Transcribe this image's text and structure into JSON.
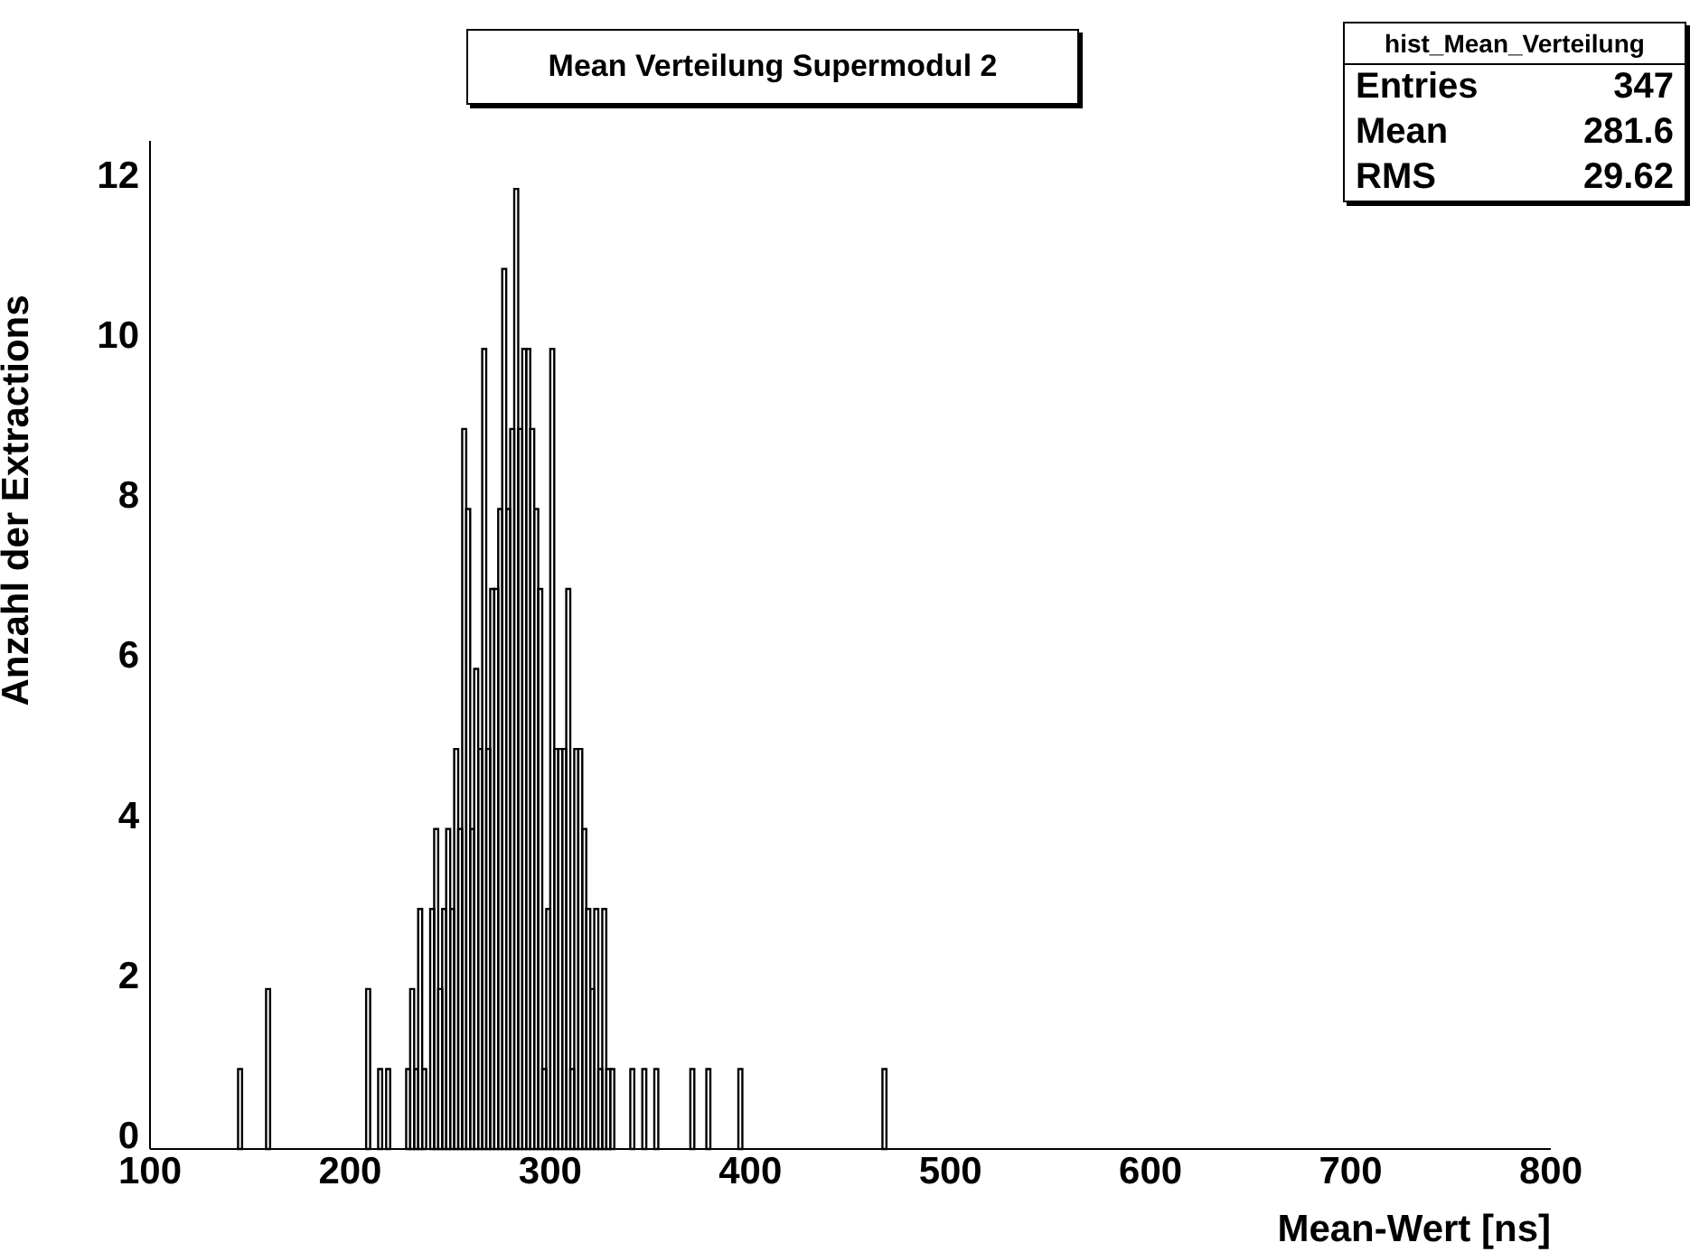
{
  "chart_data": {
    "type": "histogram",
    "title": "Mean Verteilung Supermodul 2",
    "xlabel": "Mean-Wert [ns]",
    "ylabel": "Anzahl der Extractions",
    "bins": [
      144,
      146,
      158,
      160,
      208,
      210,
      214,
      216,
      218,
      220,
      228,
      230,
      232,
      234,
      236,
      238,
      240,
      242,
      244,
      246,
      248,
      250,
      252,
      254,
      256,
      258,
      260,
      262,
      264,
      266,
      268,
      270,
      272,
      274,
      276,
      278,
      280,
      282,
      284,
      286,
      288,
      290,
      292,
      294,
      296,
      298,
      300,
      302,
      304,
      306,
      308,
      310,
      312,
      314,
      316,
      318,
      320,
      322,
      324,
      326,
      328,
      330,
      332,
      340,
      342,
      346,
      348,
      352,
      354,
      370,
      372,
      378,
      380,
      394,
      396,
      466,
      468
    ],
    "values": [
      1,
      0,
      2,
      0,
      2,
      0,
      1,
      0,
      1,
      0,
      1,
      2,
      1,
      3,
      1,
      0,
      3,
      4,
      2,
      3,
      4,
      3,
      5,
      4,
      9,
      8,
      4,
      6,
      5,
      10,
      5,
      7,
      7,
      8,
      11,
      8,
      9,
      12,
      9,
      10,
      10,
      9,
      8,
      7,
      1,
      3,
      10,
      5,
      5,
      5,
      7,
      1,
      5,
      5,
      4,
      3,
      2,
      3,
      1,
      3,
      1,
      1,
      0,
      1,
      0,
      1,
      0,
      1,
      0,
      1,
      0,
      1,
      0,
      1,
      0,
      1
    ],
    "color": "#000000",
    "xlim": [
      100,
      800
    ],
    "xticks": [
      100,
      200,
      300,
      400,
      500,
      600,
      700,
      800
    ],
    "ylim": [
      0,
      12.6
    ],
    "yticks": [
      0,
      2,
      4,
      6,
      8,
      10,
      12
    ],
    "annotations": [
      "hist_Mean_Verteilung",
      "Entries 347",
      "Mean 281.6",
      "RMS 29.62"
    ]
  }
}
